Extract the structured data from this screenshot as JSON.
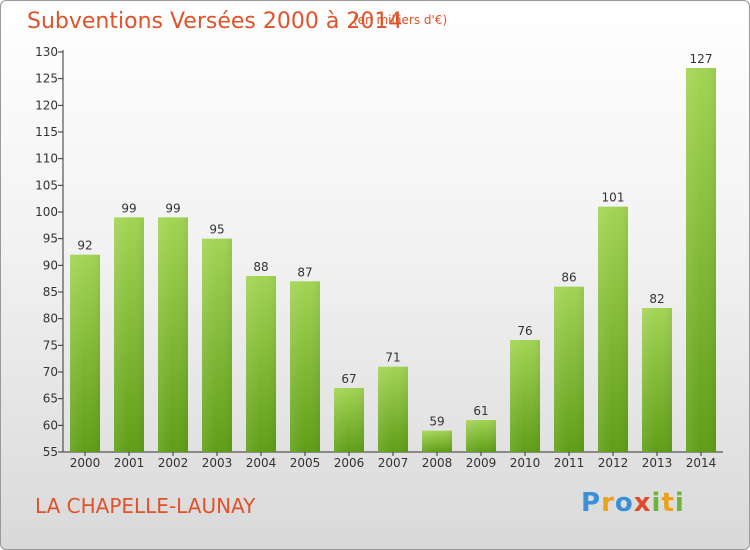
{
  "title": "Subventions Versées 2000 à 2014",
  "subtitle": "(en milliers d'€)",
  "location": "LA CHAPELLE-LAUNAY",
  "logo": {
    "text": "Proxiti",
    "letters": [
      "P",
      "r",
      "o",
      "x",
      "i",
      "t",
      "i"
    ]
  },
  "colors": {
    "title": "#e0522a",
    "bar_light": "#a3d454",
    "bar_dark": "#5f9e17",
    "axis": "#333333"
  },
  "chart_data": {
    "type": "bar",
    "categories": [
      "2000",
      "2001",
      "2002",
      "2003",
      "2004",
      "2005",
      "2006",
      "2007",
      "2008",
      "2009",
      "2010",
      "2011",
      "2012",
      "2013",
      "2014"
    ],
    "values": [
      92,
      99,
      99,
      95,
      88,
      87,
      67,
      71,
      59,
      61,
      76,
      86,
      101,
      82,
      127
    ],
    "ylim": [
      55,
      130
    ],
    "yticks": [
      55,
      60,
      65,
      70,
      75,
      80,
      85,
      90,
      95,
      100,
      105,
      110,
      115,
      120,
      125,
      130
    ],
    "grid": false,
    "data_labels": true
  }
}
